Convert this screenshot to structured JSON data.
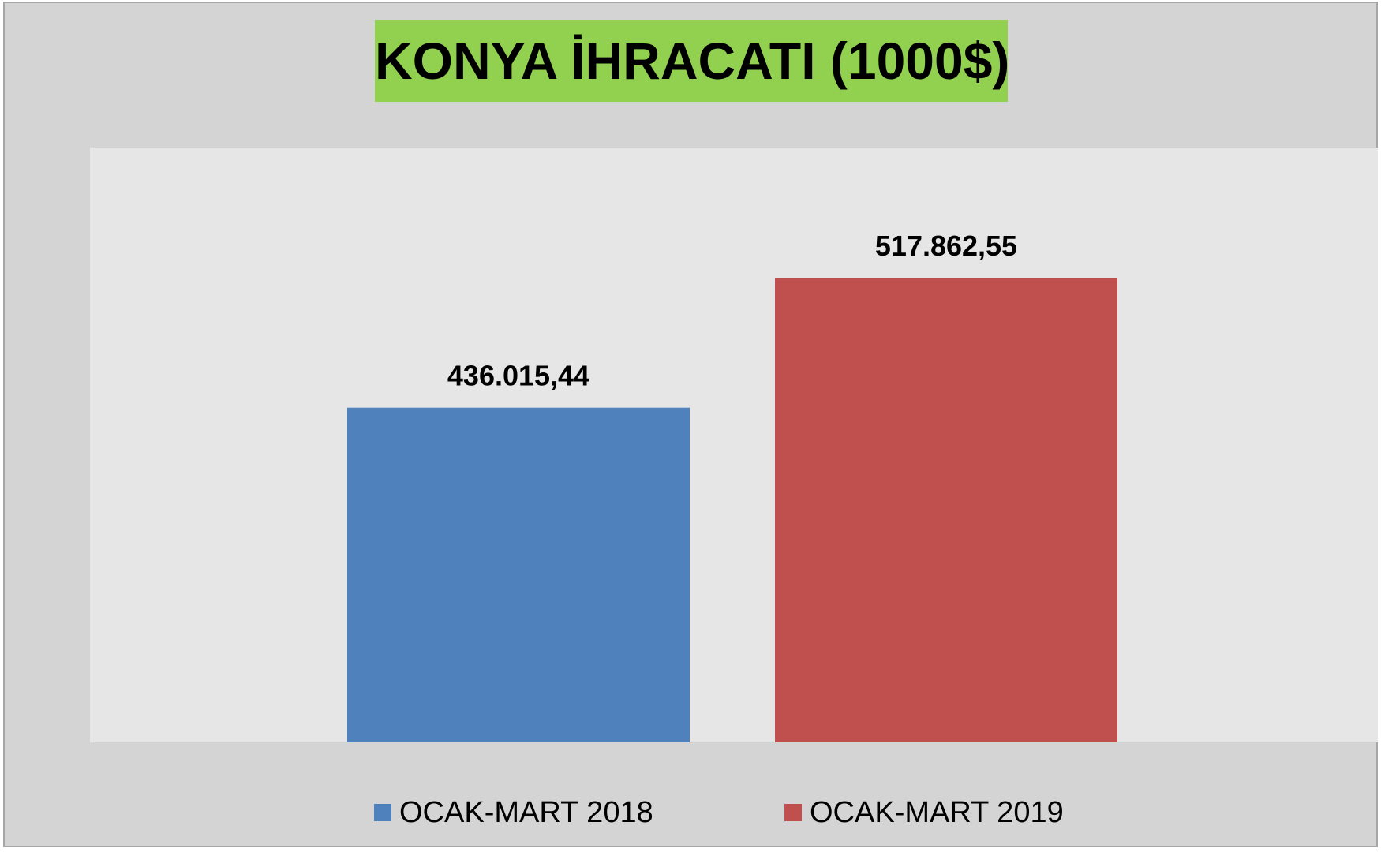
{
  "chart_data": {
    "type": "bar",
    "title": "KONYA İHRACATI (1000$)",
    "xlabel": "",
    "ylabel": "",
    "categories": [
      ""
    ],
    "series": [
      {
        "name": "OCAK-MART 2018",
        "values": [
          436015.44
        ],
        "label": "436.015,44",
        "color": "#4f81bd"
      },
      {
        "name": "OCAK-MART 2019",
        "values": [
          517862.55
        ],
        "label": "517.862,55",
        "color": "#c0504d"
      }
    ],
    "ylim": [
      225000,
      600000
    ],
    "grid": false,
    "legend": "bottom"
  },
  "colors": {
    "title_background": "#92d050",
    "chart_background": "#d4d4d4",
    "plot_background": "#e6e6e6"
  }
}
